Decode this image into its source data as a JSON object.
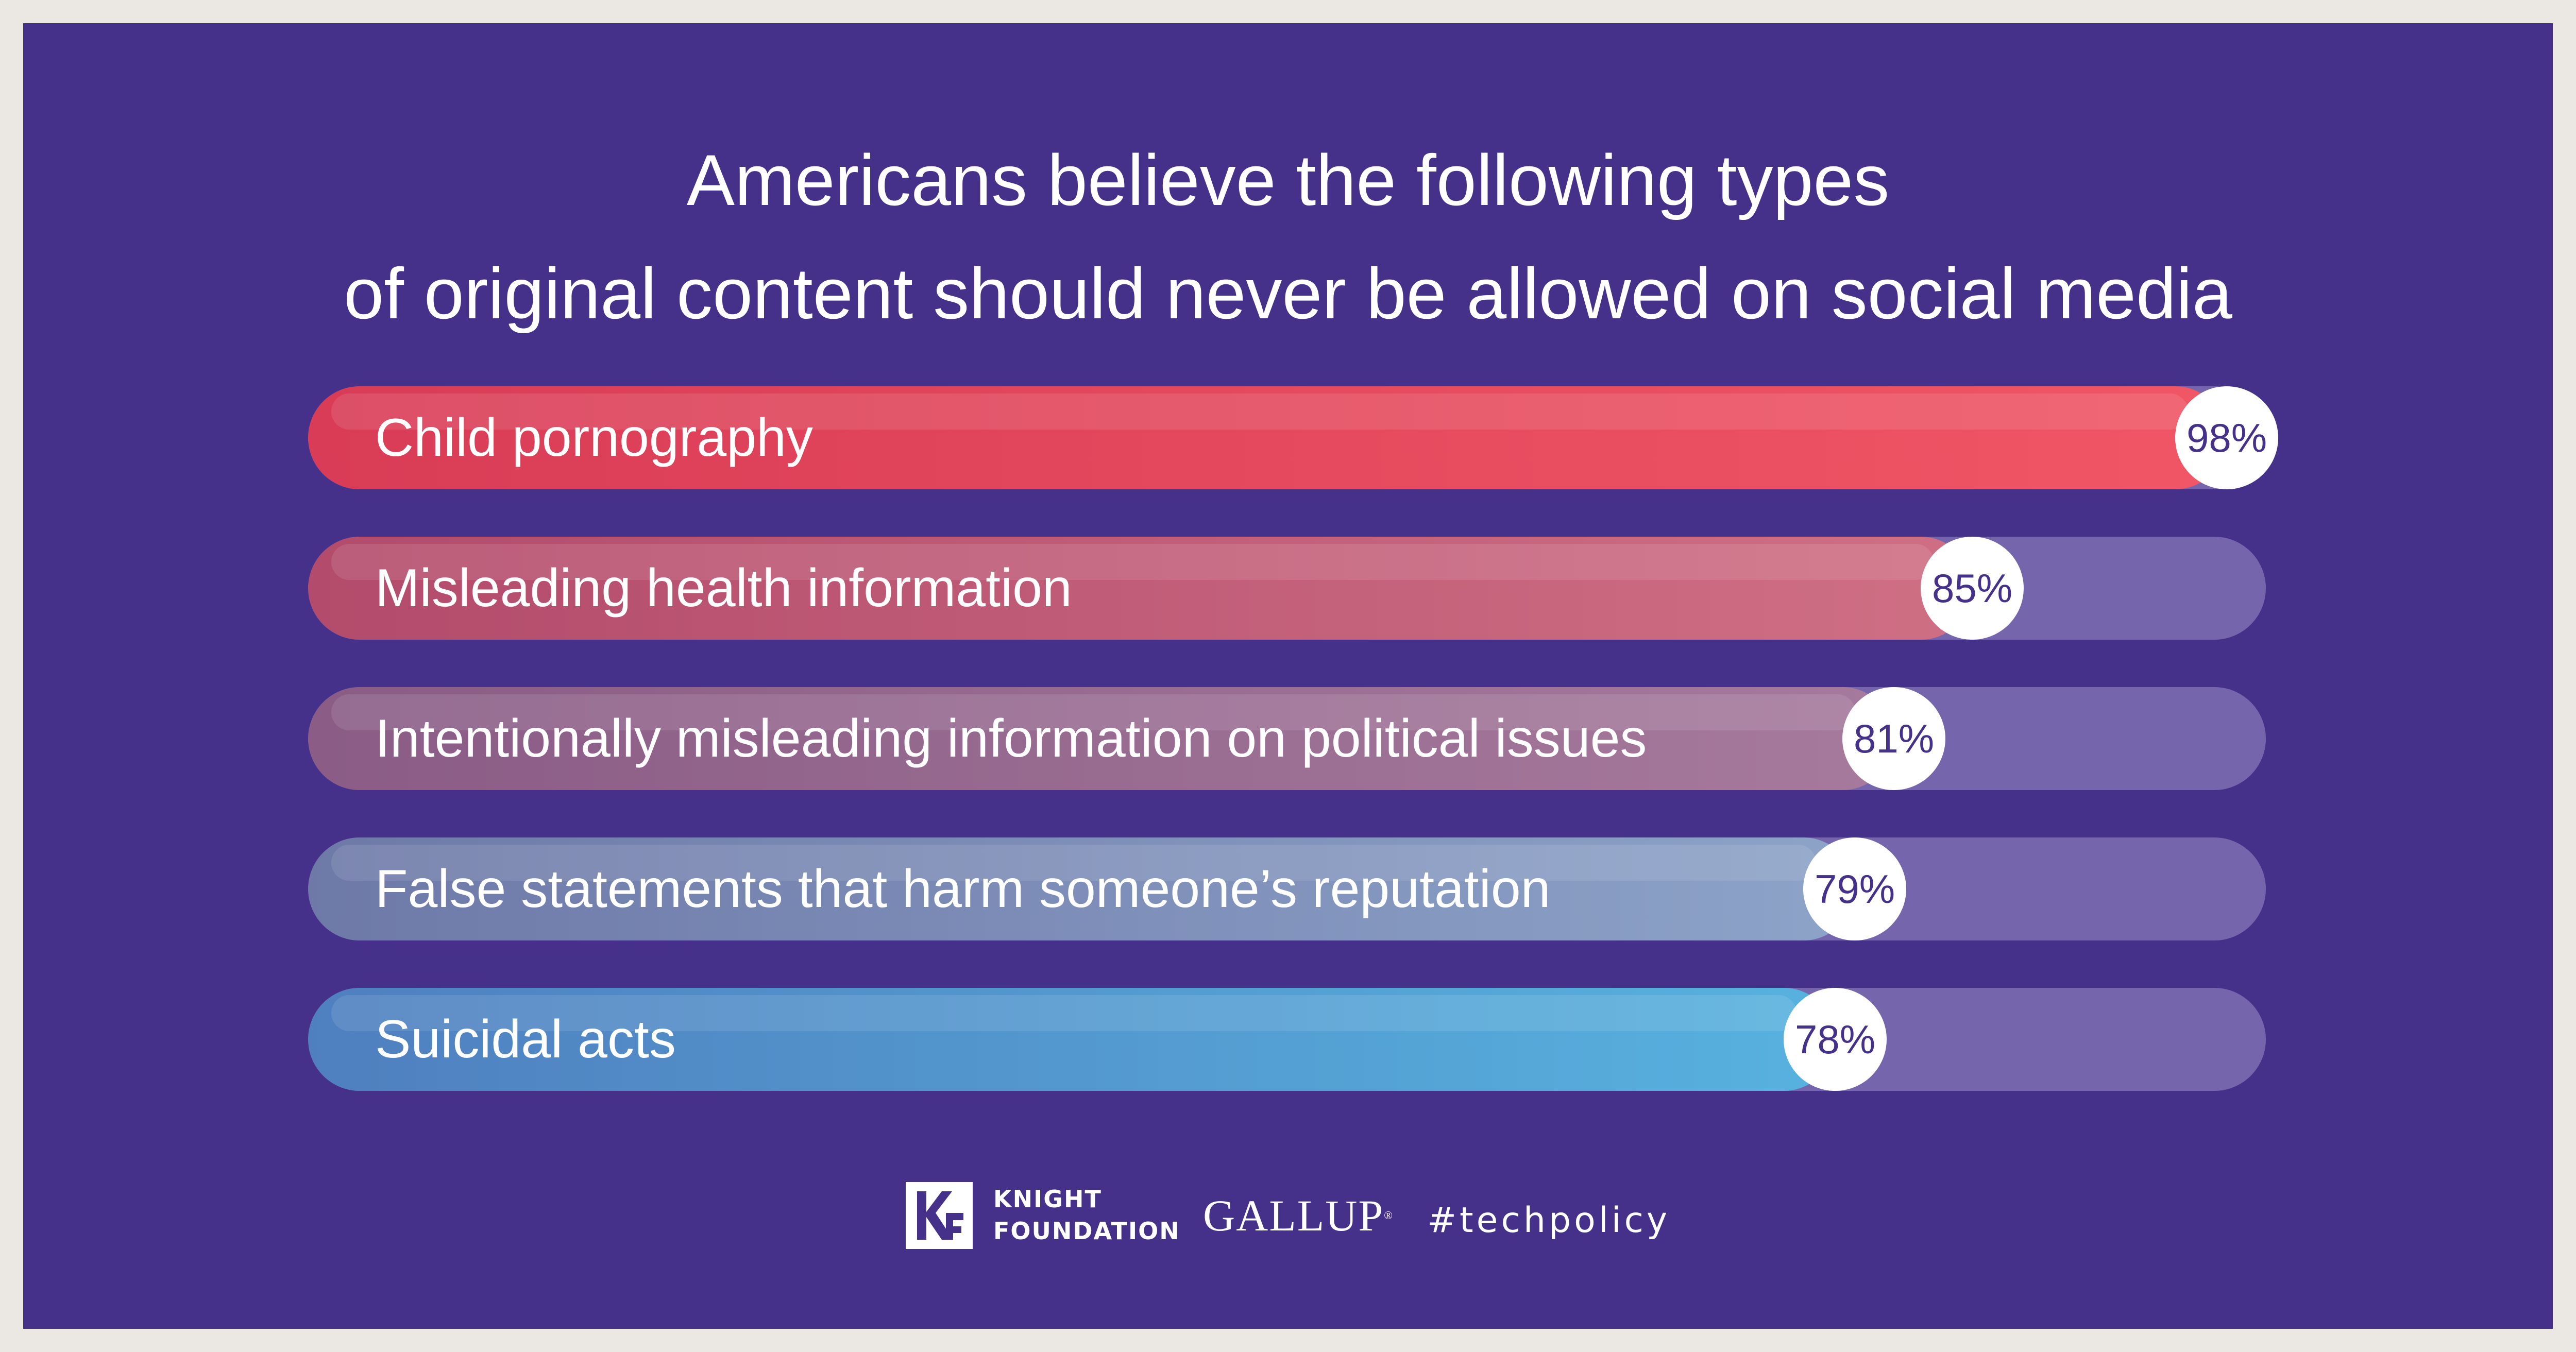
{
  "chart_data": {
    "type": "bar",
    "title_lines": [
      "Americans believe the following types",
      "of original content should never be allowed on social media"
    ],
    "categories": [
      "Child pornography",
      "Misleading health information",
      "Intentionally misleading information on political issues",
      "False statements that harm someone’s reputation",
      "Suicidal acts"
    ],
    "values": [
      98,
      85,
      81,
      79,
      78
    ],
    "value_labels": [
      "98%",
      "85%",
      "81%",
      "79%",
      "78%"
    ],
    "xlim": [
      0,
      100
    ],
    "orientation": "horizontal",
    "bar_colors": [
      [
        "#d93c56",
        "#f05665"
      ],
      [
        "#b34b6c",
        "#cf6f84"
      ],
      [
        "#8a5c86",
        "#a67a9c"
      ],
      [
        "#6e79a8",
        "#8da3c8"
      ],
      [
        "#4f7fbf",
        "#57b2df"
      ]
    ],
    "track_color": "#7565ad"
  },
  "footer": {
    "logo_mark": "KF",
    "org_line1": "KNIGHT",
    "org_line2": "FOUNDATION",
    "partner": "GALLUP",
    "partner_mark": "®",
    "hashtag": "#techpolicy"
  },
  "colors": {
    "background": "#45308a",
    "frame": "#ebe8e3",
    "text": "#ffffff"
  }
}
